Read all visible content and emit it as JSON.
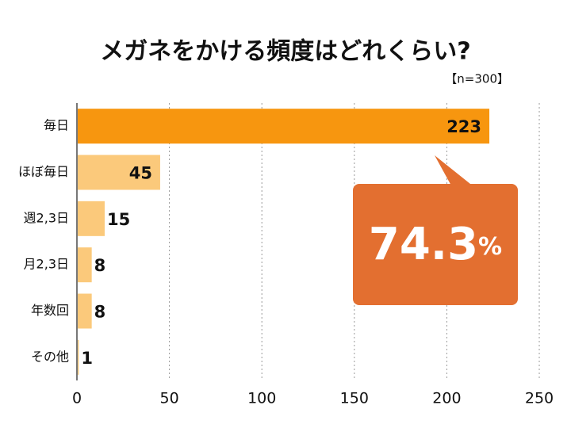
{
  "chart_data": {
    "type": "hbar",
    "title": "メガネをかける頻度はどれくらい?",
    "subtitle": "【n=300】",
    "categories": [
      "毎日",
      "ほぼ毎日",
      "週2,3日",
      "月2,3日",
      "年数回",
      "その他"
    ],
    "values": [
      223,
      45,
      15,
      8,
      8,
      1
    ],
    "colors": [
      "#f7960f",
      "#fbc97b",
      "#fbc97b",
      "#fbc97b",
      "#fbc97b",
      "#fbc97b"
    ],
    "xlim": [
      0,
      250
    ],
    "xticks": [
      0,
      50,
      100,
      150,
      200,
      250
    ],
    "grid": true,
    "annotation": {
      "text": "74.3",
      "unit": "%",
      "color": "#e36f30"
    }
  }
}
